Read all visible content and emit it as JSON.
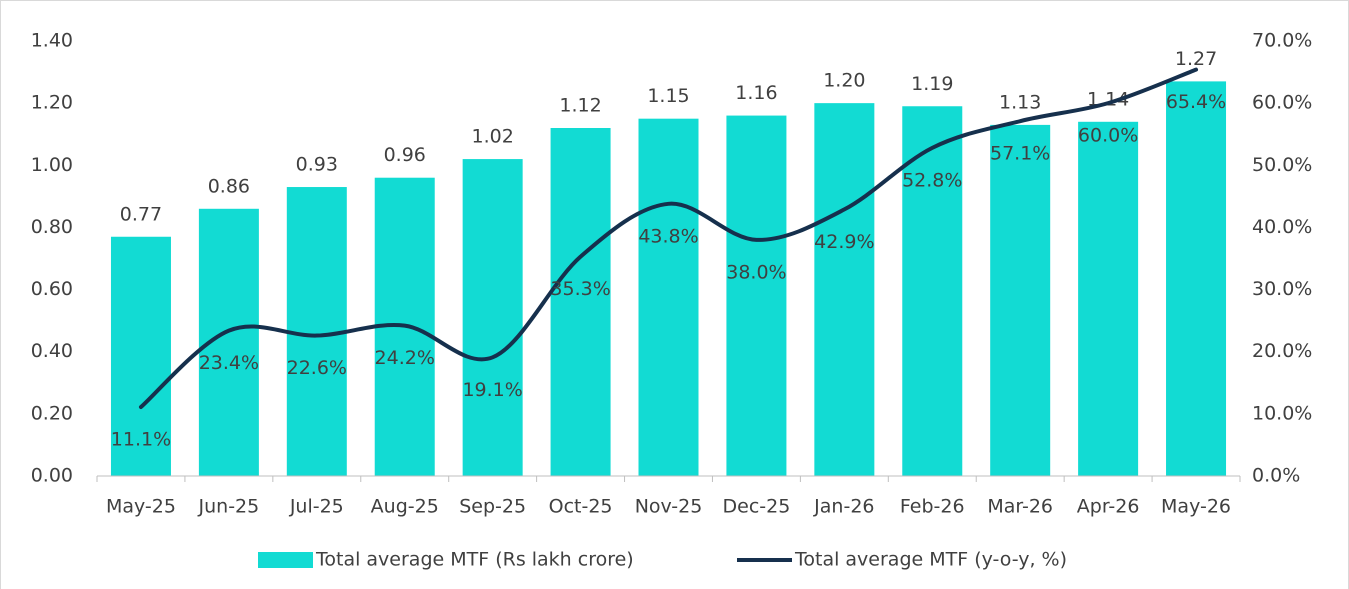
{
  "chart_data": {
    "type": "bar",
    "categories": [
      "May-25",
      "Jun-25",
      "Jul-25",
      "Aug-25",
      "Sep-25",
      "Oct-25",
      "Nov-25",
      "Dec-25",
      "Jan-26",
      "Feb-26",
      "Mar-26",
      "Apr-26",
      "May-26"
    ],
    "series": [
      {
        "name": "Total average MTF (Rs lakh crore)",
        "color": "#12dbd3",
        "values": [
          0.77,
          0.86,
          0.93,
          0.96,
          1.02,
          1.12,
          1.15,
          1.16,
          1.2,
          1.19,
          1.13,
          1.14,
          1.27
        ],
        "value_labels": [
          "0.77",
          "0.86",
          "0.93",
          "0.96",
          "1.02",
          "1.12",
          "1.15",
          "1.16",
          "1.20",
          "1.19",
          "1.13",
          "1.14",
          "1.27"
        ]
      },
      {
        "name": "Total average MTF (y-o-y, %)",
        "color": "#16304d",
        "type": "line",
        "axis": "y2",
        "values": [
          11.1,
          23.4,
          22.6,
          24.2,
          19.1,
          35.3,
          43.8,
          38.0,
          42.9,
          52.8,
          57.1,
          60.0,
          65.4
        ],
        "value_labels": [
          "11.1%",
          "23.4%",
          "22.6%",
          "24.2%",
          "19.1%",
          "35.3%",
          "43.8%",
          "38.0%",
          "42.9%",
          "52.8%",
          "57.1%",
          "60.0%",
          "65.4%"
        ]
      }
    ],
    "ylim": [
      0,
      1.4
    ],
    "yticks": [
      {
        "value": 0,
        "label": "0.00"
      },
      {
        "value": 0.2,
        "label": "0.20"
      },
      {
        "value": 0.4,
        "label": "0.40"
      },
      {
        "value": 0.6,
        "label": "0.60"
      },
      {
        "value": 0.8,
        "label": "0.80"
      },
      {
        "value": 1.0,
        "label": "1.00"
      },
      {
        "value": 1.2,
        "label": "1.20"
      },
      {
        "value": 1.4,
        "label": "1.40"
      }
    ],
    "y2lim": [
      0,
      70
    ],
    "y2ticks": [
      {
        "value": 0,
        "label": "0.0%"
      },
      {
        "value": 10,
        "label": "10.0%"
      },
      {
        "value": 20,
        "label": "20.0%"
      },
      {
        "value": 30,
        "label": "30.0%"
      },
      {
        "value": 40,
        "label": "40.0%"
      },
      {
        "value": 50,
        "label": "50.0%"
      },
      {
        "value": 60,
        "label": "60.0%"
      },
      {
        "value": 70,
        "label": "70.0%"
      }
    ],
    "legend": "bottom"
  }
}
